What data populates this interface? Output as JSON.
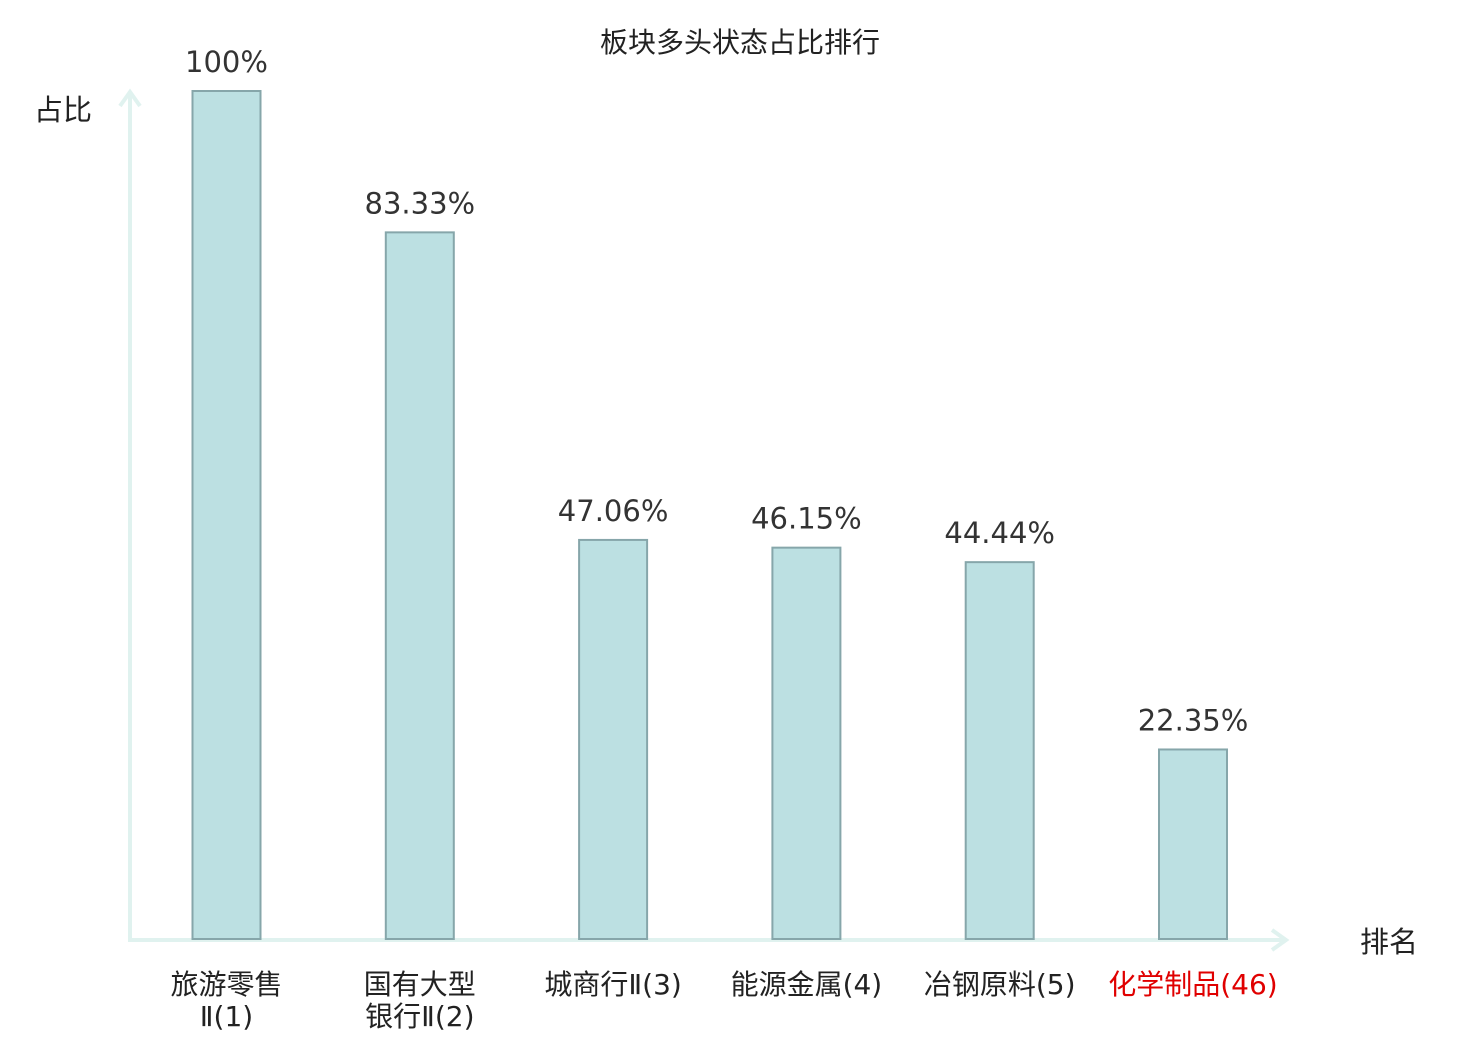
{
  "chart_data": {
    "type": "bar",
    "title": "板块多头状态占比排行",
    "ylabel": "占比",
    "xlabel": "排名",
    "ylim": [
      0,
      100
    ],
    "grid": false,
    "categories": [
      {
        "lines": [
          "旅游零售",
          "Ⅱ(1)"
        ],
        "highlight": false
      },
      {
        "lines": [
          "国有大型",
          "银行Ⅱ(2)"
        ],
        "highlight": false
      },
      {
        "lines": [
          "城商行Ⅱ(3)"
        ],
        "highlight": false
      },
      {
        "lines": [
          "能源金属(4)"
        ],
        "highlight": false
      },
      {
        "lines": [
          "冶钢原料(5)"
        ],
        "highlight": false
      },
      {
        "lines": [
          "化学制品(46)"
        ],
        "highlight": true
      }
    ],
    "values": [
      100,
      83.33,
      47.06,
      46.15,
      44.44,
      22.35
    ],
    "value_labels": [
      "100%",
      "83.33%",
      "47.06%",
      "46.15%",
      "44.44%",
      "22.35%"
    ]
  },
  "colors": {
    "bar_fill": "#bce0e2",
    "bar_stroke": "#86a6aa",
    "axis": "#e0f2ef",
    "text": "#222222",
    "highlight": "#e00000"
  }
}
